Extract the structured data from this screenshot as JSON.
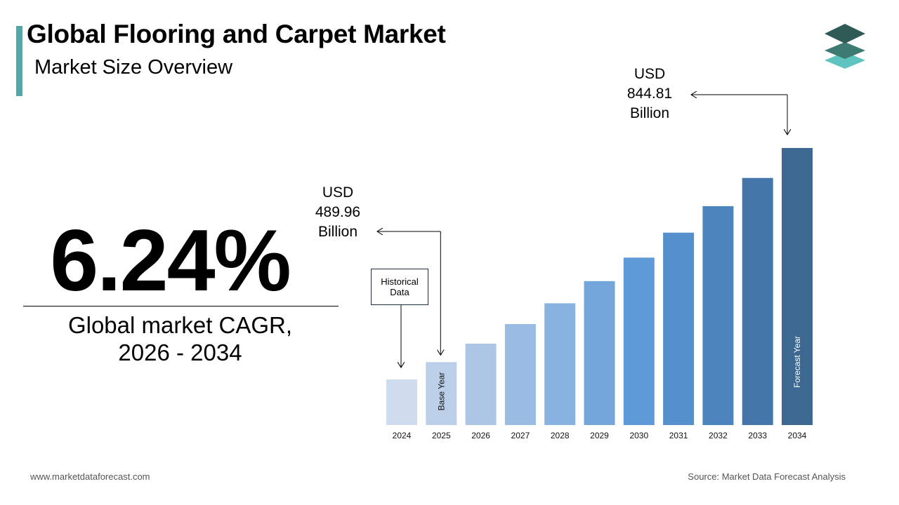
{
  "header": {
    "title": "Global Flooring and Carpet Market",
    "subtitle": "Market Size Overview"
  },
  "cagr": {
    "value": "6.24%",
    "label_line1": "Global market CAGR,",
    "label_line2": "2026 - 2034"
  },
  "callouts": {
    "value_2034": {
      "currency": "USD",
      "amount": "844.81",
      "unit": "Billion"
    },
    "value_2025": {
      "currency": "USD",
      "amount": "489.96",
      "unit": "Billion"
    },
    "historical_label_line1": "Historical",
    "historical_label_line2": "Data",
    "base_year_label": "Base Year",
    "forecast_year_label": "Forecast Year"
  },
  "footer": {
    "website": "www.marketdataforecast.com",
    "source": "Source: Market Data Forecast Analysis"
  },
  "colors": {
    "accent": "#4da8a8",
    "logo_top": "#2f5a55",
    "logo_middle": "#3d7a72",
    "logo_bottom": "#5fc3bf",
    "bar_colors": [
      "#cfdcee",
      "#bccfe8",
      "#adc6e5",
      "#9abbe2",
      "#88b2e0",
      "#74a6dc",
      "#5f9ad8",
      "#5590cc",
      "#4c85be",
      "#4476aa",
      "#3c6892"
    ]
  },
  "chart_data": {
    "type": "bar",
    "categories": [
      "2024",
      "2025",
      "2026",
      "2027",
      "2028",
      "2029",
      "2030",
      "2031",
      "2032",
      "2033",
      "2034"
    ],
    "values": [
      461.2,
      489.96,
      520.5,
      553.0,
      587.5,
      624.2,
      663.1,
      704.5,
      748.5,
      795.2,
      844.81
    ],
    "annotated": {
      "2025": "USD 489.96 Billion",
      "2034": "USD 844.81 Billion"
    },
    "title": "",
    "xlabel": "",
    "ylabel": "",
    "grid": false,
    "legend": "none"
  }
}
